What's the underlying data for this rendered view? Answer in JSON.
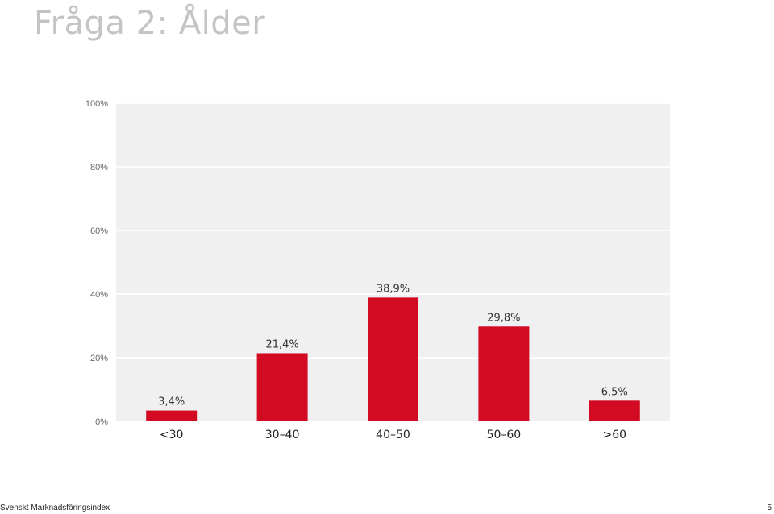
{
  "page": {
    "title": "Fråga 2: Ålder",
    "footer_text": "Svenskt Marknadsföringsindex",
    "page_number": "5"
  },
  "colors": {
    "bar": "#d20a22",
    "plot_background": "#f0f0f0",
    "gridline": "#ffffff",
    "title": "#c4c4c4",
    "axis_text": "#666666",
    "label_text": "#333333"
  },
  "chart_data": {
    "type": "bar",
    "title": "",
    "xlabel": "",
    "ylabel": "",
    "categories": [
      "<30",
      "30–40",
      "40–50",
      "50–60",
      ">60"
    ],
    "values": [
      3.4,
      21.4,
      38.9,
      29.8,
      6.5
    ],
    "data_labels": [
      "3,4%",
      "21,4%",
      "38,9%",
      "29,8%",
      "6,5%"
    ],
    "ylim": [
      0,
      100
    ],
    "yticks": [
      0,
      20,
      40,
      60,
      80,
      100
    ],
    "ytick_labels": [
      "0%",
      "20%",
      "40%",
      "60%",
      "80%",
      "100%"
    ],
    "grid": true,
    "legend": "none"
  }
}
